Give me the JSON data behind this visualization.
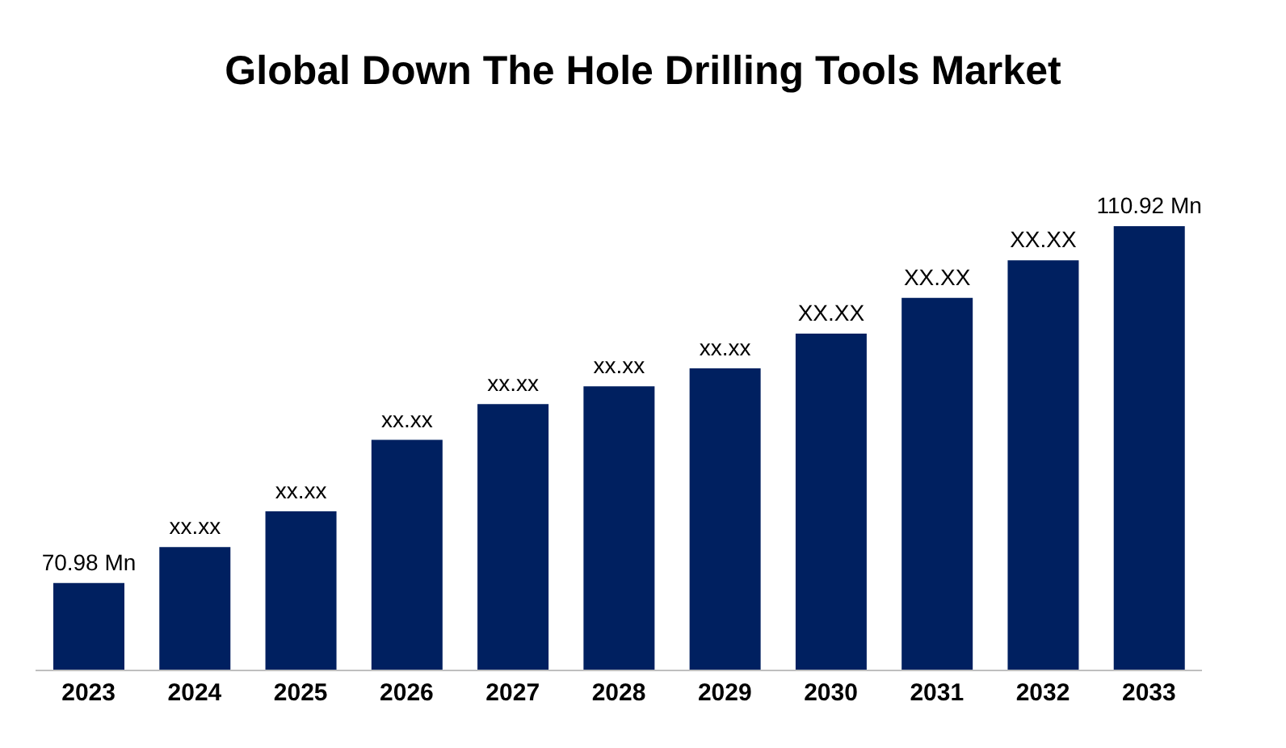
{
  "chart_data": {
    "type": "bar",
    "title": "Global Down The Hole Drilling Tools Market",
    "ylim": [
      61.2,
      110.92
    ],
    "tick_labels": "x",
    "categories": [
      "2023",
      "2024",
      "2025",
      "2026",
      "2027",
      "2028",
      "2029",
      "2030",
      "2031",
      "2032",
      "2033"
    ],
    "values": [
      70.98,
      75.0,
      79.0,
      87.0,
      91.0,
      93.0,
      95.0,
      98.9,
      102.9,
      107.1,
      110.92
    ],
    "value_labels": [
      "70.98 Mn",
      "xx.xx",
      "xx.xx",
      "xx.xx",
      "xx.xx",
      "xx.xx",
      "xx.xx",
      "XX.XX",
      "XX.XX",
      "XX.XX",
      "110.92 Mn"
    ],
    "color": "#002060",
    "grid": false,
    "legend": false
  }
}
